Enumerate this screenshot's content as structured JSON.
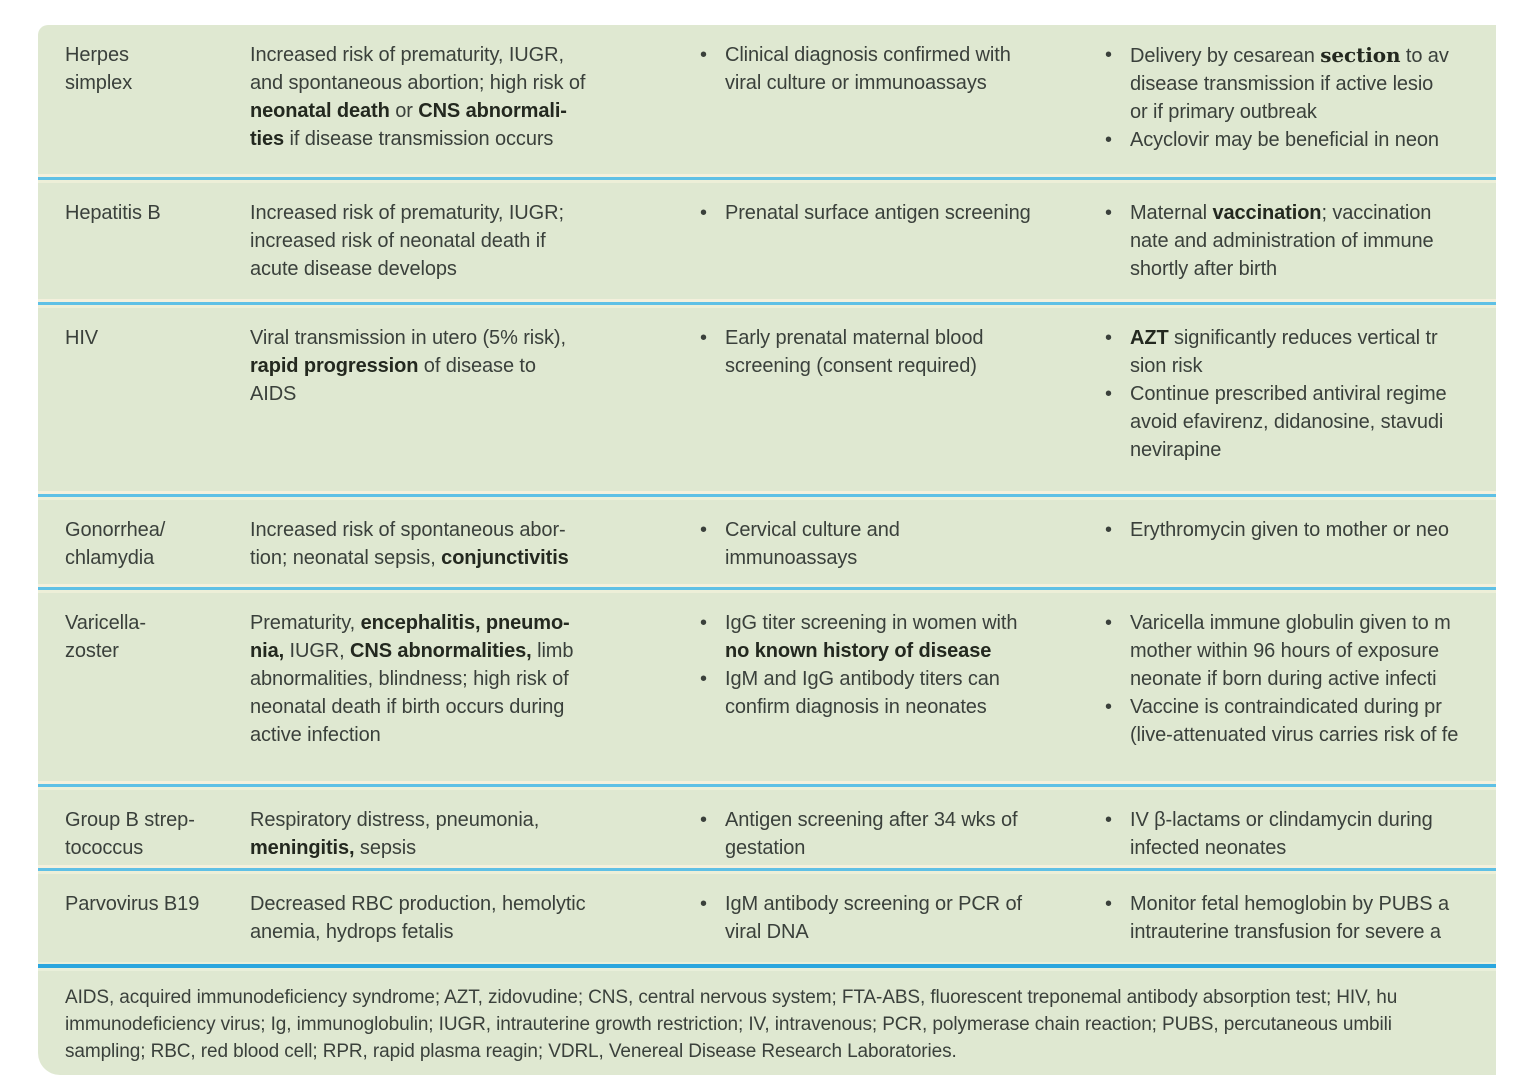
{
  "colors": {
    "panel_bg": "#dfe8d1",
    "divider": "#5fc0e5",
    "footnote_divider": "#2ba6de",
    "text": "#3a403b",
    "bold_text": "#23281f",
    "page_bg": "#ffffff"
  },
  "table": {
    "rows": [
      {
        "disease": [
          "Herpes",
          "simplex"
        ],
        "effects": [
          [
            "Increased risk of prematurity, IUGR,"
          ],
          [
            "and spontaneous abortion; high risk of"
          ],
          [
            {
              "t": "neonatal death",
              "b": true
            },
            " or ",
            {
              "t": "CNS abnormali-",
              "b": true
            }
          ],
          [
            {
              "t": "ties",
              "b": true
            },
            " if disease transmission occurs"
          ]
        ],
        "diagnosis": [
          [
            [
              "Clinical diagnosis confirmed with"
            ],
            [
              "viral culture or immunoassays"
            ]
          ]
        ],
        "treatment": [
          [
            [
              "Delivery by cesarean ",
              {
                "t": "section",
                "b": true,
                "s": true
              },
              " to av"
            ],
            [
              "disease transmission if active lesio"
            ],
            [
              "or if primary outbreak"
            ]
          ],
          [
            [
              "Acyclovir may be beneficial in neon"
            ]
          ]
        ]
      },
      {
        "disease": [
          "Hepatitis B"
        ],
        "effects": [
          [
            "Increased risk of prematurity, IUGR;"
          ],
          [
            "increased risk of neonatal death if"
          ],
          [
            "acute disease develops"
          ]
        ],
        "diagnosis": [
          [
            [
              "Prenatal surface antigen screening"
            ]
          ]
        ],
        "treatment": [
          [
            [
              "Maternal ",
              {
                "t": "vaccination",
                "b": true
              },
              "; vaccination"
            ],
            [
              "nate and administration of immune"
            ],
            [
              "shortly after birth"
            ]
          ]
        ]
      },
      {
        "disease": [
          "HIV"
        ],
        "effects": [
          [
            "Viral transmission in utero (5% risk),"
          ],
          [
            {
              "t": "rapid progression",
              "b": true
            },
            " of disease to"
          ],
          [
            "AIDS"
          ]
        ],
        "diagnosis": [
          [
            [
              "Early prenatal maternal blood"
            ],
            [
              "screening (consent required)"
            ]
          ]
        ],
        "treatment": [
          [
            [
              {
                "t": "AZT",
                "b": true
              },
              " significantly reduces vertical tr"
            ],
            [
              "sion risk"
            ]
          ],
          [
            [
              "Continue prescribed antiviral regime"
            ],
            [
              "avoid efavirenz, didanosine, stavudi"
            ],
            [
              "nevirapine"
            ]
          ]
        ]
      },
      {
        "disease": [
          "Gonorrhea/",
          "chlamydia"
        ],
        "effects": [
          [
            "Increased risk of spontaneous abor-"
          ],
          [
            "tion; neonatal sepsis, ",
            {
              "t": "conjunctivitis",
              "b": true
            }
          ]
        ],
        "diagnosis": [
          [
            [
              "Cervical culture and"
            ],
            [
              "immunoassays"
            ]
          ]
        ],
        "treatment": [
          [
            [
              "Erythromycin given to mother or neo"
            ]
          ]
        ]
      },
      {
        "disease": [
          "Varicella-",
          "zoster"
        ],
        "effects": [
          [
            "Prematurity, ",
            {
              "t": "encephalitis, pneumo-",
              "b": true
            }
          ],
          [
            {
              "t": "nia,",
              "b": true
            },
            " IUGR, ",
            {
              "t": "CNS abnormalities,",
              "b": true
            },
            " limb"
          ],
          [
            "abnormalities, blindness; high risk of"
          ],
          [
            "neonatal death if birth occurs during"
          ],
          [
            "active infection"
          ]
        ],
        "diagnosis": [
          [
            [
              "IgG titer screening in women with"
            ],
            [
              {
                "t": "no known history of disease",
                "b": true
              }
            ]
          ],
          [
            [
              "IgM and IgG antibody titers can"
            ],
            [
              "confirm diagnosis in neonates"
            ]
          ]
        ],
        "treatment": [
          [
            [
              "Varicella immune globulin given to m"
            ],
            [
              "mother within 96 hours of exposure"
            ],
            [
              "neonate if born during active infecti"
            ]
          ],
          [
            [
              "Vaccine is contraindicated during pr"
            ],
            [
              "(live-attenuated virus carries risk of fe"
            ]
          ]
        ]
      },
      {
        "disease": [
          "Group B strep-",
          "tococcus"
        ],
        "effects": [
          [
            "Respiratory distress, pneumonia,"
          ],
          [
            {
              "t": "meningitis,",
              "b": true
            },
            " sepsis"
          ]
        ],
        "diagnosis": [
          [
            [
              "Antigen screening after 34 wks of"
            ],
            [
              "gestation"
            ]
          ]
        ],
        "treatment": [
          [
            [
              "IV β-lactams or clindamycin during"
            ],
            [
              "infected neonates"
            ]
          ]
        ]
      },
      {
        "disease": [
          "Parvovirus B19"
        ],
        "effects": [
          [
            "Decreased RBC production, hemolytic"
          ],
          [
            "anemia, hydrops fetalis"
          ]
        ],
        "diagnosis": [
          [
            [
              "IgM antibody screening or PCR of"
            ],
            [
              "viral DNA"
            ]
          ]
        ],
        "treatment": [
          [
            [
              "Monitor fetal hemoglobin by PUBS a"
            ],
            [
              "intrauterine transfusion for severe a"
            ]
          ]
        ]
      }
    ]
  },
  "footnote": {
    "lines": [
      "AIDS, acquired immunodeficiency syndrome; AZT, zidovudine; CNS, central nervous system; FTA-ABS, fluorescent treponemal antibody absorption test; HIV, hu",
      "immunodeficiency virus; Ig, immunoglobulin; IUGR, intrauterine growth restriction; IV, intravenous; PCR, polymerase chain reaction; PUBS, percutaneous umbili",
      "sampling; RBC, red blood cell; RPR, rapid plasma reagin; VDRL, Venereal Disease Research Laboratories."
    ]
  }
}
